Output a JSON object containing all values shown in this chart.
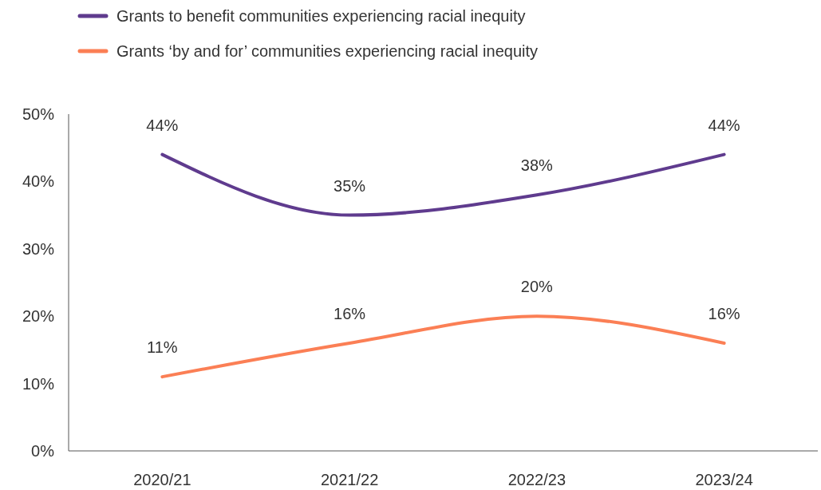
{
  "chart_data": {
    "type": "line",
    "categories": [
      "2020/21",
      "2021/22",
      "2022/23",
      "2023/24"
    ],
    "series": [
      {
        "name": "Grants to benefit communities experiencing racial inequity",
        "color": "#5f3b8e",
        "values": [
          44,
          35,
          38,
          44
        ],
        "value_labels": [
          "44%",
          "35%",
          "38%",
          "44%"
        ]
      },
      {
        "name": "Grants ‘by and for’ communities experiencing racial inequity",
        "color": "#fb7f55",
        "values": [
          11,
          16,
          20,
          16
        ],
        "value_labels": [
          "11%",
          "16%",
          "20%",
          "16%"
        ]
      }
    ],
    "ylim": [
      0,
      50
    ],
    "yticks": [
      {
        "value": 0,
        "label": "0%"
      },
      {
        "value": 10,
        "label": "10%"
      },
      {
        "value": 20,
        "label": "20%"
      },
      {
        "value": 30,
        "label": "30%"
      },
      {
        "value": 40,
        "label": "40%"
      },
      {
        "value": 50,
        "label": "50%"
      }
    ],
    "grid": false,
    "legend": "top left",
    "marker": "none",
    "line_style": "solid"
  }
}
